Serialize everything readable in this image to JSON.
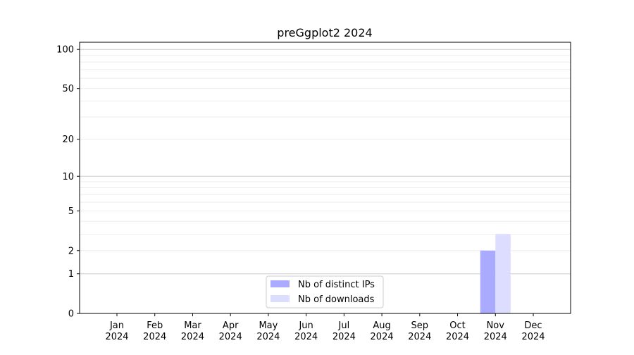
{
  "chart_data": {
    "type": "bar",
    "title": "preGgplot2 2024",
    "xlabel": "",
    "ylabel": "",
    "yscale": "symlog (log10(1+y))",
    "ylim": [
      0,
      113
    ],
    "yticks": [
      0,
      1,
      2,
      5,
      10,
      20,
      50,
      100
    ],
    "grid": "horizontal",
    "legend_position": "bottom-center",
    "categories": [
      "Jan\n2024",
      "Feb\n2024",
      "Mar\n2024",
      "Apr\n2024",
      "May\n2024",
      "Jun\n2024",
      "Jul\n2024",
      "Aug\n2024",
      "Sep\n2024",
      "Oct\n2024",
      "Nov\n2024",
      "Dec\n2024"
    ],
    "series": [
      {
        "name": "Nb of distinct IPs",
        "color": "#aaaaff",
        "values": [
          0,
          0,
          0,
          0,
          0,
          0,
          0,
          0,
          0,
          0,
          2,
          0
        ]
      },
      {
        "name": "Nb of downloads",
        "color": "#ddddff",
        "values": [
          0,
          0,
          0,
          0,
          0,
          0,
          0,
          0,
          0,
          0,
          3,
          0
        ]
      }
    ]
  }
}
